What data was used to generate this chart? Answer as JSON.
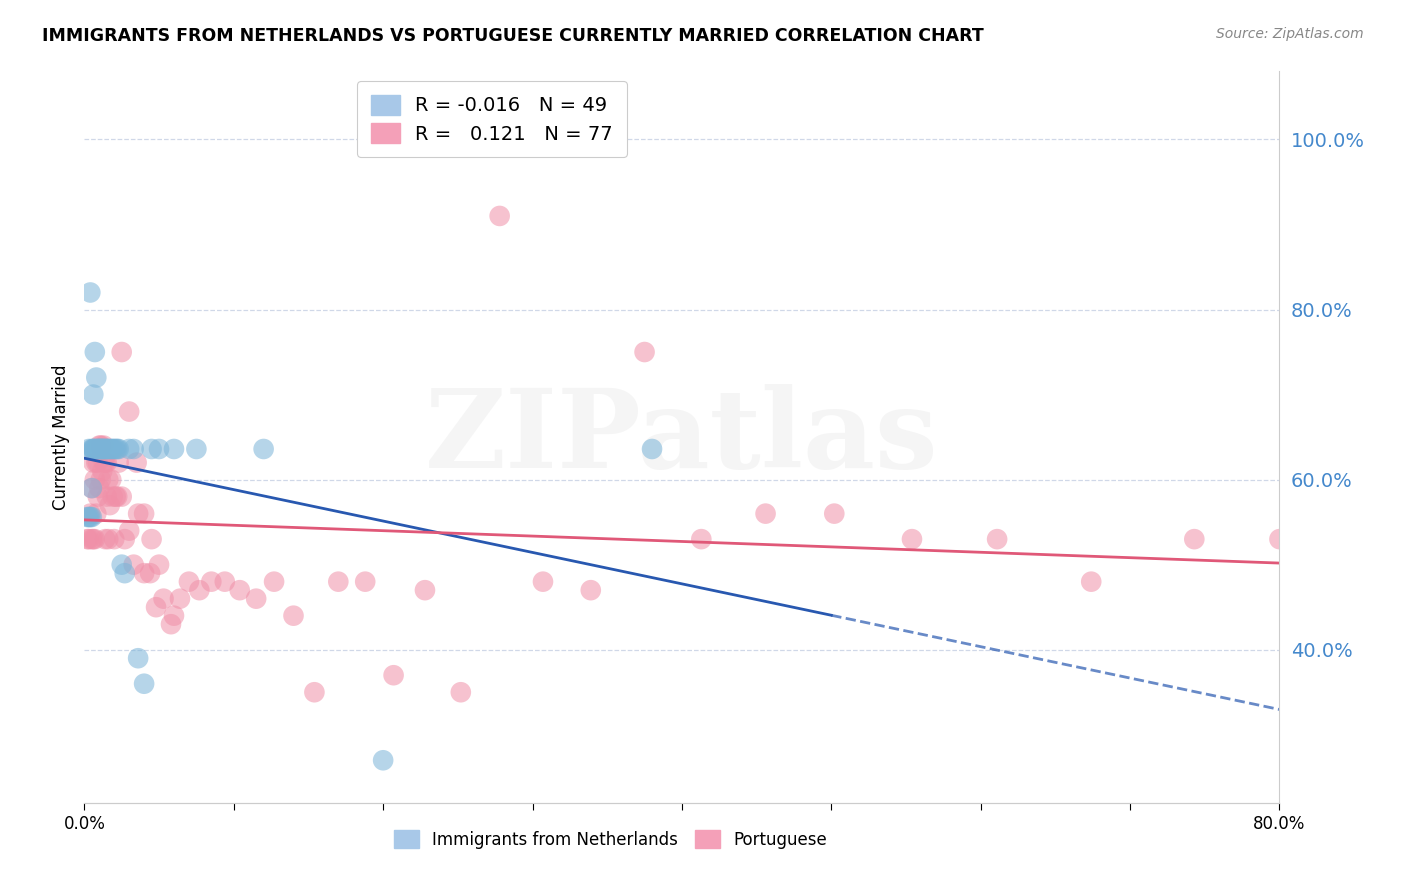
{
  "title": "IMMIGRANTS FROM NETHERLANDS VS PORTUGUESE CURRENTLY MARRIED CORRELATION CHART",
  "source": "Source: ZipAtlas.com",
  "ylabel": "Currently Married",
  "right_ytick_values": [
    1.0,
    0.8,
    0.6,
    0.4
  ],
  "blue_color": "#7ab4d8",
  "pink_color": "#f090a8",
  "blue_line_color": "#2858b0",
  "pink_line_color": "#e05878",
  "watermark": "ZIPatlas",
  "xlim": [
    0.0,
    0.8
  ],
  "ylim": [
    0.22,
    1.08
  ],
  "legend_label_blue": "R = -0.016   N = 49",
  "legend_label_pink": "R =   0.121   N = 77",
  "legend_series_blue": "Immigrants from Netherlands",
  "legend_series_pink": "Portuguese",
  "blue_scatter_x": [
    0.002,
    0.003,
    0.003,
    0.004,
    0.004,
    0.005,
    0.005,
    0.005,
    0.006,
    0.006,
    0.006,
    0.007,
    0.007,
    0.008,
    0.008,
    0.009,
    0.009,
    0.01,
    0.01,
    0.011,
    0.011,
    0.012,
    0.012,
    0.013,
    0.013,
    0.014,
    0.015,
    0.015,
    0.016,
    0.017,
    0.018,
    0.019,
    0.02,
    0.021,
    0.022,
    0.023,
    0.025,
    0.027,
    0.03,
    0.033,
    0.036,
    0.04,
    0.045,
    0.05,
    0.06,
    0.075,
    0.12,
    0.2,
    0.38
  ],
  "blue_scatter_y": [
    0.556,
    0.556,
    0.636,
    0.82,
    0.556,
    0.556,
    0.636,
    0.59,
    0.636,
    0.636,
    0.7,
    0.636,
    0.75,
    0.636,
    0.72,
    0.636,
    0.636,
    0.636,
    0.636,
    0.636,
    0.636,
    0.636,
    0.636,
    0.636,
    0.636,
    0.636,
    0.636,
    0.636,
    0.636,
    0.636,
    0.636,
    0.636,
    0.636,
    0.636,
    0.636,
    0.636,
    0.5,
    0.49,
    0.636,
    0.636,
    0.39,
    0.36,
    0.636,
    0.636,
    0.636,
    0.636,
    0.636,
    0.27,
    0.636
  ],
  "pink_scatter_x": [
    0.002,
    0.003,
    0.004,
    0.005,
    0.005,
    0.006,
    0.006,
    0.007,
    0.007,
    0.008,
    0.008,
    0.009,
    0.009,
    0.01,
    0.01,
    0.011,
    0.011,
    0.012,
    0.013,
    0.013,
    0.014,
    0.014,
    0.015,
    0.015,
    0.016,
    0.016,
    0.017,
    0.018,
    0.019,
    0.02,
    0.021,
    0.022,
    0.023,
    0.025,
    0.027,
    0.03,
    0.033,
    0.036,
    0.04,
    0.044,
    0.048,
    0.053,
    0.058,
    0.064,
    0.07,
    0.077,
    0.085,
    0.094,
    0.104,
    0.115,
    0.127,
    0.14,
    0.154,
    0.17,
    0.188,
    0.207,
    0.228,
    0.252,
    0.278,
    0.307,
    0.339,
    0.375,
    0.413,
    0.456,
    0.502,
    0.554,
    0.611,
    0.674,
    0.743,
    0.8,
    0.025,
    0.03,
    0.035,
    0.04,
    0.045,
    0.05,
    0.06
  ],
  "pink_scatter_y": [
    0.53,
    0.53,
    0.56,
    0.53,
    0.59,
    0.53,
    0.62,
    0.53,
    0.6,
    0.56,
    0.62,
    0.58,
    0.62,
    0.59,
    0.64,
    0.6,
    0.64,
    0.61,
    0.64,
    0.62,
    0.62,
    0.53,
    0.58,
    0.62,
    0.6,
    0.53,
    0.57,
    0.6,
    0.58,
    0.53,
    0.58,
    0.58,
    0.62,
    0.58,
    0.53,
    0.54,
    0.5,
    0.56,
    0.49,
    0.49,
    0.45,
    0.46,
    0.43,
    0.46,
    0.48,
    0.47,
    0.48,
    0.48,
    0.47,
    0.46,
    0.48,
    0.44,
    0.35,
    0.48,
    0.48,
    0.37,
    0.47,
    0.35,
    0.91,
    0.48,
    0.47,
    0.75,
    0.53,
    0.56,
    0.56,
    0.53,
    0.53,
    0.48,
    0.53,
    0.53,
    0.75,
    0.68,
    0.62,
    0.56,
    0.53,
    0.5,
    0.44
  ],
  "x_ticks": [
    0.0,
    0.1,
    0.2,
    0.3,
    0.4,
    0.5,
    0.6,
    0.7,
    0.8
  ],
  "x_tick_labels": [
    "0.0%",
    "",
    "",
    "",
    "",
    "",
    "",
    "",
    "80.0%"
  ]
}
